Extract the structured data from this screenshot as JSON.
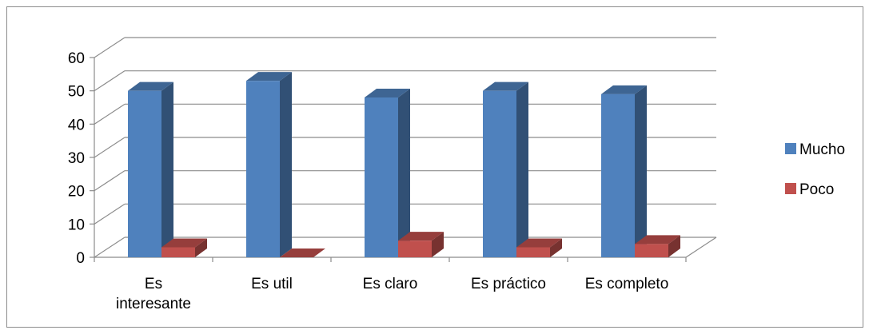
{
  "chart_data": {
    "type": "bar",
    "categories": [
      "Es interesante",
      "Es util",
      "Es claro",
      "Es práctico",
      "Es completo"
    ],
    "series": [
      {
        "name": "Mucho",
        "values": [
          50,
          53,
          48,
          50,
          49
        ],
        "color": "#4f81bd"
      },
      {
        "name": "Poco",
        "values": [
          3,
          0,
          5,
          3,
          4
        ],
        "color": "#c0504d"
      }
    ],
    "ylim": [
      0,
      60
    ],
    "yticks": [
      0,
      10,
      20,
      30,
      40,
      50,
      60
    ],
    "grid": true,
    "legend": "right",
    "style": "3d-clustered-column"
  }
}
